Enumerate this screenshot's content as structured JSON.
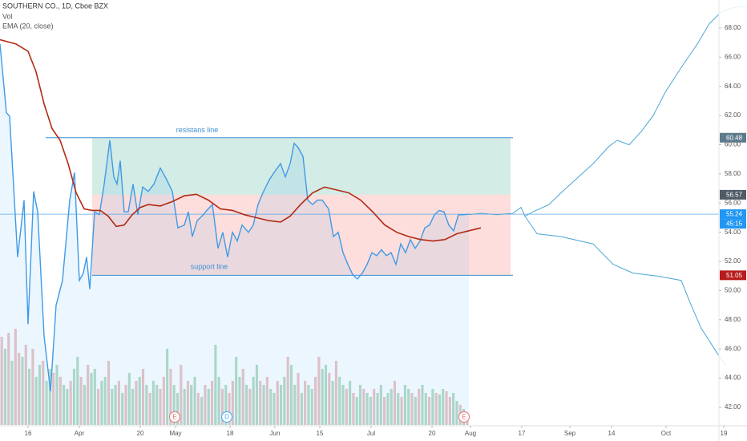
{
  "chart_data": {
    "type": "line",
    "title": "SOUTHERN CO., 1D, Cboe BZX",
    "indicators": [
      "Vol",
      "EMA (20, close)"
    ],
    "xlim": [
      6.25,
      239.25
    ],
    "xticks": [
      {
        "value": 15,
        "label": "16"
      },
      {
        "value": 31,
        "label": "Apr"
      },
      {
        "value": 50,
        "label": "20"
      },
      {
        "value": 61,
        "label": "May"
      },
      {
        "value": 78,
        "label": "18"
      },
      {
        "value": 92,
        "label": "Jun"
      },
      {
        "value": 106,
        "label": "15"
      },
      {
        "value": 122,
        "label": "Jul"
      },
      {
        "value": 141,
        "label": "20"
      },
      {
        "value": 153,
        "label": "Aug"
      },
      {
        "value": 169,
        "label": "17"
      },
      {
        "value": 184,
        "label": "Sep"
      },
      {
        "value": 197,
        "label": "14"
      },
      {
        "value": 214,
        "label": "Oct"
      },
      {
        "value": 232,
        "label": "19"
      }
    ],
    "ylim": [
      40.79,
      69.92
    ],
    "yticks": [
      {
        "value": 42,
        "label": "42.00"
      },
      {
        "value": 44,
        "label": "44.00"
      },
      {
        "value": 46,
        "label": "46.00"
      },
      {
        "value": 48,
        "label": "48.00"
      },
      {
        "value": 50,
        "label": "50.00"
      },
      {
        "value": 52,
        "label": "52.00"
      },
      {
        "value": 54,
        "label": "54.00"
      },
      {
        "value": 56,
        "label": "56.00"
      },
      {
        "value": 58,
        "label": "58.00"
      },
      {
        "value": 60,
        "label": "60.00"
      },
      {
        "value": 62,
        "label": "62.00"
      },
      {
        "value": 64,
        "label": "64.00"
      },
      {
        "value": 66,
        "label": "66.00"
      },
      {
        "value": 68,
        "label": "68.00"
      }
    ],
    "series": [
      {
        "color": "#3f9ae6",
        "area": true,
        "x": [
          6.25,
          8.25,
          9.25,
          11.75,
          13.75,
          15,
          16.75,
          18,
          20,
          22,
          23.75,
          25.75,
          28,
          29.5,
          31,
          32.25,
          33.25,
          34.25,
          35.75,
          37.25,
          38.75,
          40.5,
          41.75,
          42.75,
          43.75,
          45,
          46.25,
          47.75,
          49.25,
          50.75,
          52.5,
          54.25,
          56.25,
          58.25,
          60,
          61.75,
          63.75,
          65,
          66.25,
          67.75,
          69.25,
          70.75,
          72.5,
          74.25,
          75.75,
          77.25,
          78.75,
          80.25,
          81.75,
          83.75,
          85.25,
          86.75,
          88.25,
          90.25,
          91.75,
          93.75,
          95.25,
          96.75,
          98,
          99.25,
          100.75,
          102.25,
          103.75,
          105.25,
          106.75,
          108.75,
          110.25,
          111.75,
          113.25,
          114.75,
          116.25,
          117.75,
          119.25,
          120.75,
          122.25,
          123.75,
          125.25,
          126.75,
          128.25,
          129.75,
          131.25,
          132.75,
          134.25,
          135.75,
          137.25,
          138.75,
          140.25,
          141.75,
          143.25,
          144.75,
          146.25,
          147.75,
          149.25,
          150.75,
          152.5
        ],
        "values": [
          66.9,
          62.2,
          61.95,
          52.3,
          56.2,
          47.7,
          56.8,
          55.4,
          46.9,
          43.1,
          49.0,
          50.7,
          56.2,
          58.1,
          50.7,
          51.2,
          52.3,
          50.1,
          55.4,
          55.2,
          57.3,
          60.3,
          57.8,
          57.3,
          58.9,
          55.4,
          55.4,
          57.3,
          55.2,
          57.1,
          56.8,
          57.3,
          58.4,
          57.6,
          56.8,
          54.3,
          54.5,
          55.4,
          53.7,
          54.8,
          55.1,
          55.5,
          55.9,
          52.9,
          54.0,
          52.3,
          54.0,
          53.4,
          54.5,
          54.0,
          54.5,
          55.9,
          56.7,
          57.6,
          58.1,
          58.7,
          57.8,
          58.7,
          60.1,
          59.8,
          59.2,
          56.2,
          55.9,
          56.2,
          56.2,
          55.6,
          53.7,
          54.0,
          52.6,
          51.8,
          51.1,
          50.8,
          51.2,
          51.8,
          52.6,
          52.4,
          52.8,
          52.4,
          52.6,
          51.8,
          53.2,
          52.6,
          53.5,
          52.9,
          53.4,
          54.3,
          54.5,
          55.2,
          55.5,
          55.4,
          54.5,
          54.1,
          55.2,
          55.2,
          55.24
        ]
      },
      {
        "color": "#b22a13",
        "x": [
          6.25,
          11.25,
          15,
          17.5,
          20,
          22.5,
          25,
          27.5,
          30,
          32.5,
          35,
          37.5,
          40,
          42.5,
          45,
          47.5,
          50,
          52.5,
          56.25,
          60,
          63.75,
          67.5,
          71.25,
          75,
          78.75,
          82.5,
          86.25,
          90,
          93.75,
          96.75,
          100,
          103.75,
          107.5,
          111.25,
          115,
          118.75,
          122.5,
          126.25,
          130,
          133.75,
          137.5,
          141.25,
          145,
          148.75,
          152.5,
          156.25
        ],
        "values": [
          67.2,
          66.9,
          66.4,
          65.0,
          62.8,
          61.1,
          60.3,
          58.7,
          56.7,
          55.6,
          55.5,
          55.5,
          55.1,
          54.4,
          54.5,
          55.2,
          55.7,
          55.9,
          55.8,
          56.1,
          56.5,
          56.6,
          56.2,
          55.6,
          55.5,
          55.2,
          55.0,
          54.8,
          54.7,
          55.1,
          55.9,
          56.7,
          57.1,
          56.9,
          56.7,
          56.2,
          55.4,
          54.5,
          54.0,
          53.7,
          53.5,
          53.4,
          53.5,
          53.9,
          54.1,
          54.3
        ]
      },
      {
        "color": "#4aa6d6",
        "x": [
          152.5,
          156.25,
          161.25,
          166.25,
          168.75,
          170,
          172.5,
          177.5,
          181.25,
          186.25,
          191.25,
          196.25,
          198.75,
          202.5,
          206.25,
          210,
          213.75,
          218.75,
          223.75,
          227.5,
          231.25,
          235,
          239.25
        ],
        "values": [
          55.2,
          55.3,
          55.2,
          55.3,
          55.7,
          55.1,
          55.4,
          55.9,
          56.7,
          57.7,
          58.7,
          59.9,
          60.3,
          60.0,
          60.9,
          62.0,
          63.6,
          65.3,
          66.9,
          68.3,
          69.1,
          69.4,
          69.5
        ]
      },
      {
        "color": "#4aa6d6",
        "x": [
          170,
          173.75,
          181.25,
          191.25,
          197.5,
          203.75,
          211.25,
          218.75,
          221.25,
          225,
          230,
          232.5
        ],
        "values": [
          55.1,
          53.9,
          53.7,
          53.2,
          51.8,
          51.2,
          51.0,
          50.7,
          49.3,
          47.4,
          45.7,
          44.9
        ]
      }
    ],
    "volume": {
      "vlim": [
        0,
        130
      ],
      "up_color": "#b9dcc4",
      "down_color": "#efc4c4",
      "values": [
        110,
        95,
        115,
        80,
        120,
        90,
        85,
        100,
        70,
        95,
        60,
        75,
        80,
        55,
        70,
        65,
        75,
        60,
        50,
        45,
        55,
        70,
        85,
        60,
        50,
        75,
        65,
        70,
        45,
        55,
        60,
        80,
        45,
        50,
        55,
        40,
        50,
        65,
        45,
        55,
        60,
        70,
        50,
        40,
        55,
        50,
        45,
        60,
        95,
        70,
        50,
        40,
        75,
        45,
        55,
        50,
        60,
        40,
        35,
        50,
        45,
        55,
        100,
        60,
        45,
        50,
        40,
        55,
        85,
        60,
        70,
        50,
        45,
        60,
        75,
        55,
        50,
        60,
        45,
        40,
        55,
        50,
        60,
        85,
        75,
        50,
        65,
        40,
        55,
        50,
        45,
        60,
        85,
        70,
        75,
        65,
        55,
        80,
        60,
        50,
        45,
        55,
        40,
        35,
        50,
        45,
        40,
        35,
        45,
        40,
        50,
        35,
        40,
        45,
        55,
        40,
        35,
        50,
        45,
        40,
        35,
        45,
        50,
        40,
        35,
        45,
        40,
        38,
        45,
        42,
        35,
        40,
        30,
        25,
        20,
        15
      ],
      "up": [
        0,
        1,
        0,
        1,
        0,
        0,
        1,
        0,
        1,
        0,
        1,
        1,
        0,
        1,
        1,
        0,
        1,
        0,
        1,
        1,
        0,
        1,
        1,
        0,
        1,
        0,
        1,
        1,
        0,
        1,
        1,
        0,
        1,
        1,
        0,
        1,
        0,
        1,
        1,
        0,
        1,
        0,
        1,
        0,
        1,
        1,
        0,
        0,
        1,
        0,
        1,
        1,
        0,
        1,
        0,
        1,
        1,
        0,
        1,
        0,
        1,
        0,
        1,
        1,
        0,
        1,
        0,
        0,
        1,
        1,
        0,
        1,
        0,
        1,
        1,
        0,
        1,
        0,
        1,
        1,
        0,
        1,
        1,
        0,
        1,
        1,
        0,
        1,
        0,
        1,
        1,
        0,
        0,
        1,
        1,
        0,
        1,
        0,
        1,
        1,
        0,
        1,
        0,
        1,
        1,
        0,
        1,
        1,
        0,
        1,
        1,
        0,
        1,
        1,
        0,
        1,
        0,
        1,
        1,
        0,
        1,
        0,
        1,
        1,
        0,
        1,
        0,
        1,
        1,
        0,
        0,
        1,
        1,
        0,
        1,
        0
      ]
    },
    "zones": {
      "start": 35,
      "end": 165.5,
      "line_start": 20.5,
      "line_end": 166.25,
      "resistance": 60.48,
      "middle": 56.57,
      "support": 51.05,
      "resistance_label": "resistans line",
      "support_label": "support line",
      "upper_color": "rgba(80,180,150,0.25)",
      "lower_color": "rgba(244,90,80,0.2)",
      "line_color": "#3f8fd0"
    },
    "last_price": 55.24,
    "countdown": "45:15",
    "price_tags": [
      {
        "value": 60.48,
        "color": "#5d7a8c"
      },
      {
        "value": 56.57,
        "color": "#4f5b66"
      },
      {
        "value": 55.24,
        "color": "#2196f3"
      },
      {
        "value": 51.05,
        "color": "#b71c1c"
      }
    ],
    "events": [
      {
        "label": "E",
        "x": 60.75,
        "color": "#e57373"
      },
      {
        "label": "D",
        "x": 77,
        "color": "#42a5f5"
      },
      {
        "label": "E",
        "x": 151,
        "color": "#e57373"
      }
    ]
  }
}
